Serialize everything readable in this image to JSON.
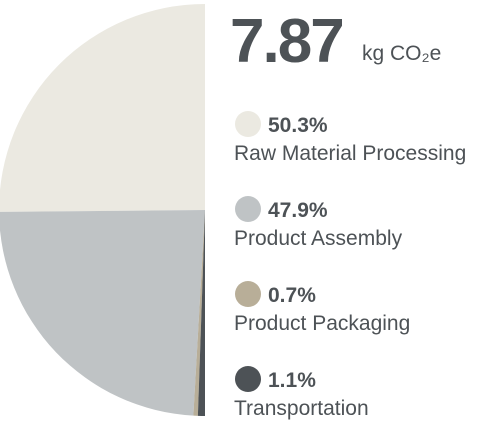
{
  "chart_data": {
    "type": "pie",
    "half": true,
    "total": 7.87,
    "unit": "kg CO₂e",
    "categories": [
      "Raw Material Processing",
      "Product Assembly",
      "Product Packaging",
      "Transportation"
    ],
    "values": [
      50.3,
      47.9,
      0.7,
      1.1
    ],
    "value_labels": [
      "50.3%",
      "47.9%",
      "0.7%",
      "1.1%"
    ],
    "colors": [
      "#ebe9e1",
      "#bfc3c5",
      "#b8ae98",
      "#4d5256"
    ]
  }
}
